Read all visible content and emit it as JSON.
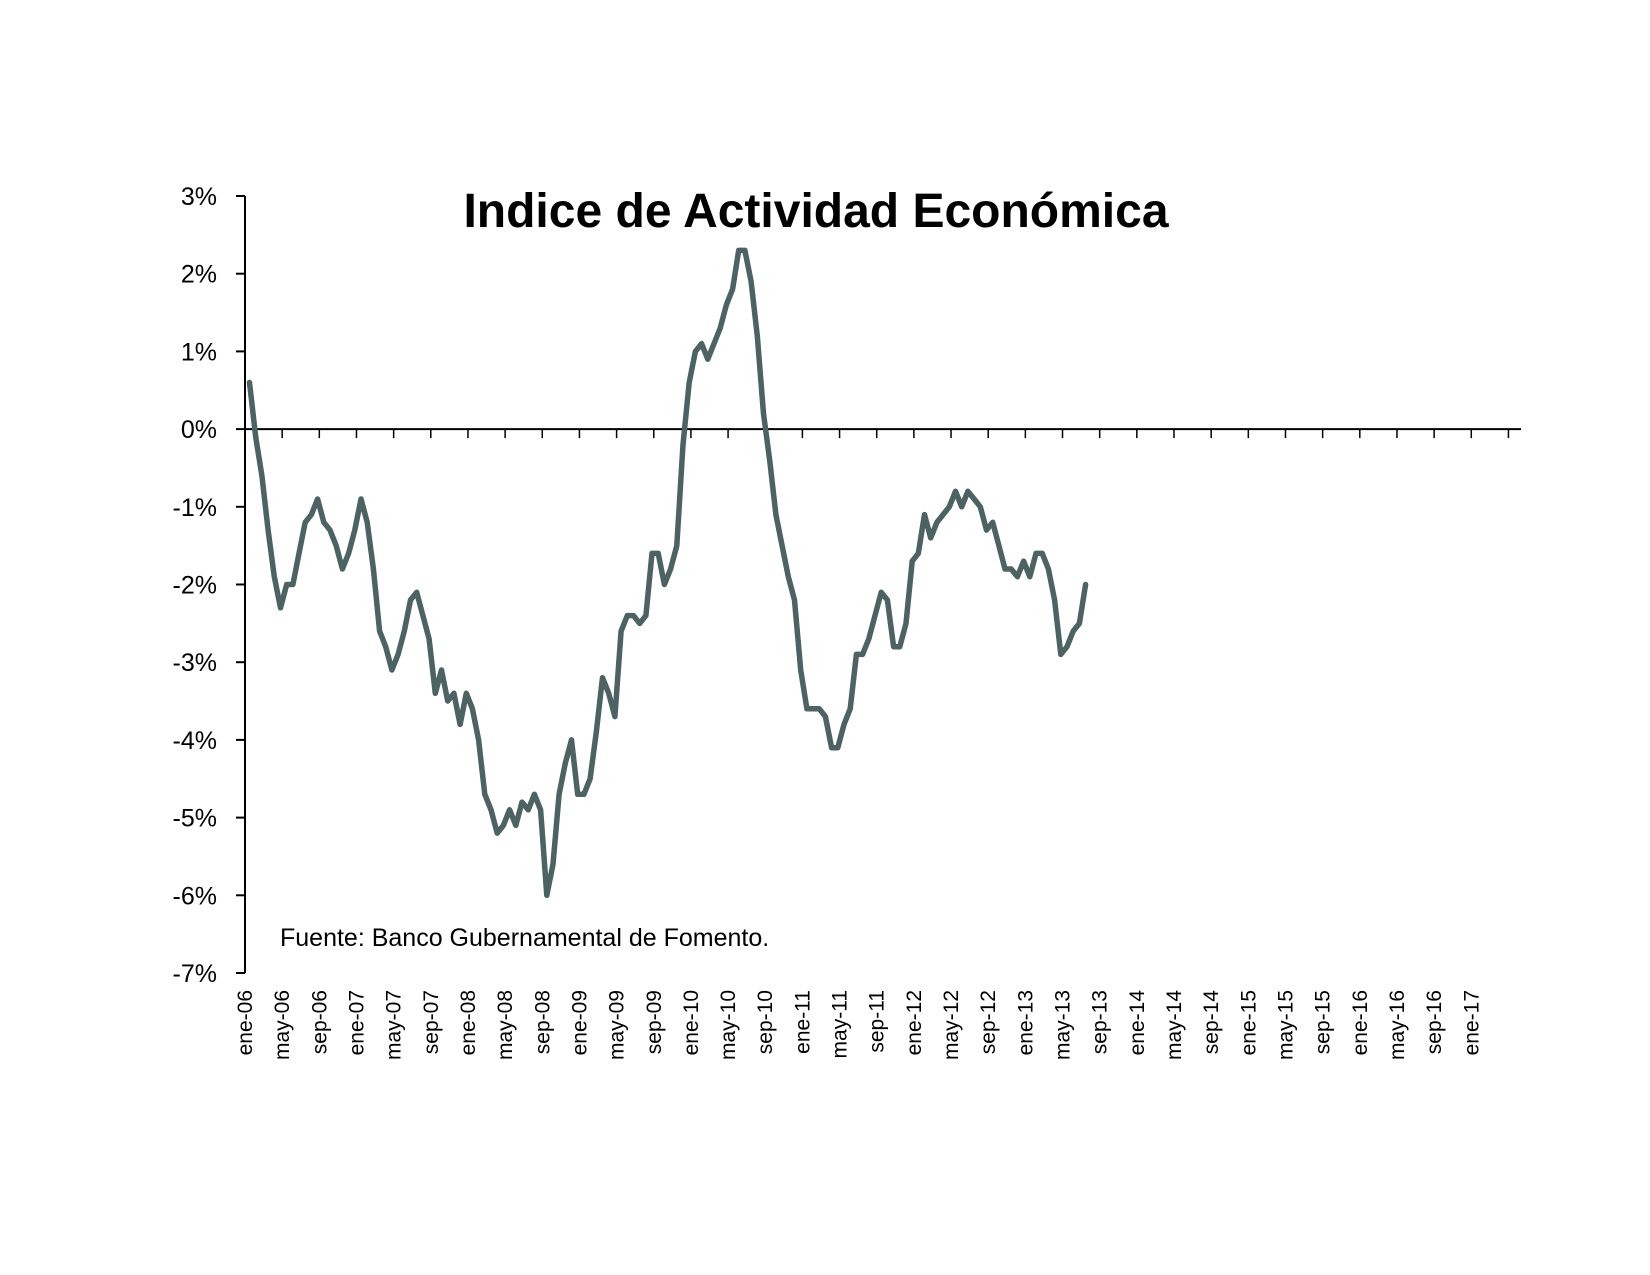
{
  "chart_data": {
    "type": "line",
    "title": "Indice de Actividad Económica",
    "annotation": "Fuente: Banco Gubernamental de Fomento.",
    "xlabel": "",
    "ylabel": "",
    "ylim": [
      -7,
      3
    ],
    "yticks": [
      "3%",
      "2%",
      "1%",
      "0%",
      "-1%",
      "-2%",
      "-3%",
      "-4%",
      "-5%",
      "-6%",
      "-7%"
    ],
    "ytick_values": [
      3,
      2,
      1,
      0,
      -1,
      -2,
      -3,
      -4,
      -5,
      -6,
      -7
    ],
    "xtick_labels": [
      "ene-06",
      "may-06",
      "sep-06",
      "ene-07",
      "may-07",
      "sep-07",
      "ene-08",
      "may-08",
      "sep-08",
      "ene-09",
      "may-09",
      "sep-09",
      "ene-10",
      "may-10",
      "sep-10",
      "ene-11",
      "may-11",
      "sep-11",
      "ene-12",
      "may-12",
      "sep-12",
      "ene-13",
      "may-13",
      "sep-13",
      "ene-14",
      "may-14",
      "sep-14",
      "ene-15",
      "may-15",
      "sep-15",
      "ene-16",
      "may-16",
      "sep-16",
      "ene-17"
    ],
    "grid": false,
    "line_color": "#4d6262",
    "series": [
      {
        "values": [
          0.6,
          -0.1,
          -0.6,
          -1.3,
          -1.9,
          -2.3,
          -2.0,
          -2.0,
          -1.6,
          -1.2,
          -1.1,
          -0.9,
          -1.2,
          -1.3,
          -1.5,
          -1.8,
          -1.6,
          -1.3,
          -0.9,
          -1.2,
          -1.8,
          -2.6,
          -2.8,
          -3.1,
          -2.9,
          -2.6,
          -2.2,
          -2.1,
          -2.4,
          -2.7,
          -3.4,
          -3.1,
          -3.5,
          -3.4,
          -3.8,
          -3.4,
          -3.6,
          -4.0,
          -4.7,
          -4.9,
          -5.2,
          -5.1,
          -4.9,
          -5.1,
          -4.8,
          -4.9,
          -4.7,
          -4.9,
          -6.0,
          -5.6,
          -4.7,
          -4.3,
          -4.0,
          -4.7,
          -4.7,
          -4.5,
          -3.9,
          -3.2,
          -3.4,
          -3.7,
          -2.6,
          -2.4,
          -2.4,
          -2.5,
          -2.4,
          -1.6,
          -1.6,
          -2.0,
          -1.8,
          -1.5,
          -0.2,
          0.6,
          1.0,
          1.1,
          0.9,
          1.1,
          1.3,
          1.6,
          1.8,
          2.3,
          2.3,
          1.9,
          1.2,
          0.2,
          -0.4,
          -1.1,
          -1.5,
          -1.9,
          -2.2,
          -3.1,
          -3.6,
          -3.6,
          -3.6,
          -3.7,
          -4.1,
          -4.1,
          -3.8,
          -3.6,
          -2.9,
          -2.9,
          -2.7,
          -2.4,
          -2.1,
          -2.2,
          -2.8,
          -2.8,
          -2.5,
          -1.7,
          -1.6,
          -1.1,
          -1.4,
          -1.2,
          -1.1,
          -1.0,
          -0.8,
          -1.0,
          -0.8,
          -0.9,
          -1.0,
          -1.3,
          -1.2,
          -1.5,
          -1.8,
          -1.8,
          -1.9,
          -1.7,
          -1.9,
          -1.6,
          -1.6,
          -1.8,
          -2.2,
          -2.9,
          -2.8,
          -2.6,
          -2.5,
          -2.0
        ]
      }
    ]
  }
}
